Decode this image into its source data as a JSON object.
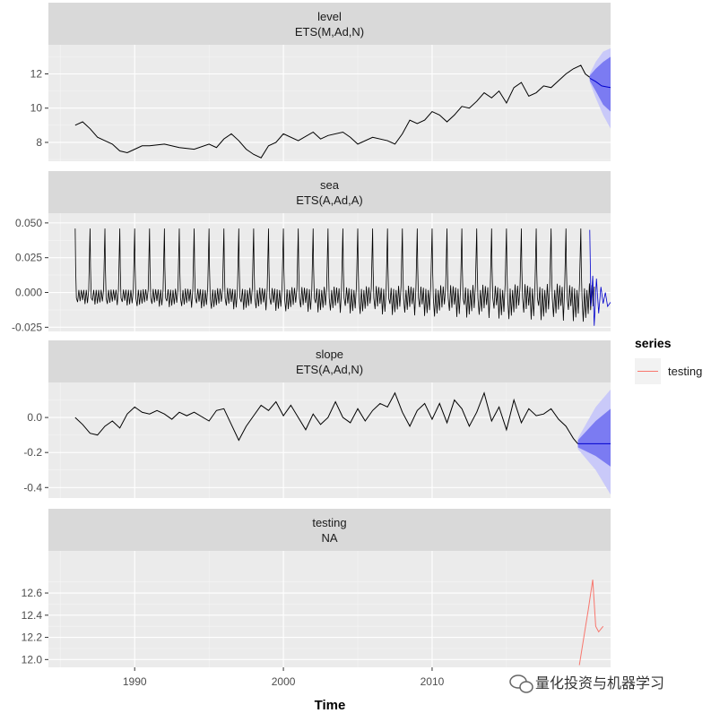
{
  "chart_data": {
    "type": "line",
    "xlabel": "Time",
    "x_ticks": [
      1990,
      2000,
      2010
    ],
    "xlim": [
      1984.2,
      2022.0
    ],
    "legend": {
      "title": "series",
      "entries": [
        {
          "name": "testing",
          "color": "#F8766D"
        }
      ],
      "position": "right"
    },
    "colors": {
      "history": "#000000",
      "forecast": "#0000CD",
      "ribbon_80": "#7B7BF2",
      "ribbon_95": "#C9C9F9",
      "testing": "#F8766D"
    },
    "panels": [
      {
        "strip": [
          "level",
          "ETS(M,Ad,N)"
        ],
        "ylim": [
          6.9,
          13.7
        ],
        "y_ticks": [
          8,
          10,
          12
        ],
        "y_tick_labels": [
          "8",
          "10",
          "12"
        ],
        "history": [
          [
            1986.0,
            9.0
          ],
          [
            1986.5,
            9.2
          ],
          [
            1987.0,
            8.8
          ],
          [
            1987.5,
            8.3
          ],
          [
            1988.0,
            8.1
          ],
          [
            1988.5,
            7.9
          ],
          [
            1989.0,
            7.5
          ],
          [
            1989.5,
            7.4
          ],
          [
            1990.0,
            7.6
          ],
          [
            1990.5,
            7.8
          ],
          [
            1991.0,
            7.8
          ],
          [
            1992.0,
            7.9
          ],
          [
            1993.0,
            7.7
          ],
          [
            1994.0,
            7.6
          ],
          [
            1995.0,
            7.9
          ],
          [
            1995.5,
            7.7
          ],
          [
            1996.0,
            8.2
          ],
          [
            1996.5,
            8.5
          ],
          [
            1997.0,
            8.1
          ],
          [
            1997.5,
            7.6
          ],
          [
            1998.0,
            7.3
          ],
          [
            1998.5,
            7.1
          ],
          [
            1999.0,
            7.8
          ],
          [
            1999.5,
            8.0
          ],
          [
            2000.0,
            8.5
          ],
          [
            2001.0,
            8.1
          ],
          [
            2002.0,
            8.6
          ],
          [
            2002.5,
            8.2
          ],
          [
            2003.0,
            8.4
          ],
          [
            2004.0,
            8.6
          ],
          [
            2004.5,
            8.3
          ],
          [
            2005.0,
            7.9
          ],
          [
            2006.0,
            8.3
          ],
          [
            2007.0,
            8.1
          ],
          [
            2007.5,
            7.9
          ],
          [
            2008.0,
            8.5
          ],
          [
            2008.5,
            9.3
          ],
          [
            2009.0,
            9.1
          ],
          [
            2009.5,
            9.3
          ],
          [
            2010.0,
            9.8
          ],
          [
            2010.5,
            9.6
          ],
          [
            2011.0,
            9.2
          ],
          [
            2011.5,
            9.6
          ],
          [
            2012.0,
            10.1
          ],
          [
            2012.5,
            10.0
          ],
          [
            2013.0,
            10.4
          ],
          [
            2013.5,
            10.9
          ],
          [
            2014.0,
            10.6
          ],
          [
            2014.5,
            11.0
          ],
          [
            2015.0,
            10.3
          ],
          [
            2015.5,
            11.2
          ],
          [
            2016.0,
            11.5
          ],
          [
            2016.5,
            10.7
          ],
          [
            2017.0,
            10.9
          ],
          [
            2017.5,
            11.3
          ],
          [
            2018.0,
            11.2
          ],
          [
            2018.5,
            11.6
          ],
          [
            2019.0,
            12.0
          ],
          [
            2019.5,
            12.3
          ],
          [
            2020.0,
            12.5
          ],
          [
            2020.3,
            12.0
          ],
          [
            2020.6,
            11.8
          ]
        ],
        "forecast": [
          [
            2020.6,
            11.75
          ],
          [
            2021.0,
            11.55
          ],
          [
            2021.4,
            11.3
          ],
          [
            2021.7,
            11.25
          ],
          [
            2022.0,
            11.2
          ]
        ],
        "ribbon_80": [
          [
            2020.6,
            11.6,
            11.9
          ],
          [
            2021.0,
            11.0,
            12.3
          ],
          [
            2021.5,
            10.2,
            12.7
          ],
          [
            2022.0,
            9.8,
            13.0
          ]
        ],
        "ribbon_95": [
          [
            2020.6,
            11.5,
            12.0
          ],
          [
            2021.0,
            10.6,
            12.7
          ],
          [
            2021.5,
            9.6,
            13.3
          ],
          [
            2022.0,
            8.8,
            13.5
          ]
        ]
      },
      {
        "strip": [
          "sea",
          "ETS(A,Ad,A)"
        ],
        "ylim": [
          -0.028,
          0.057
        ],
        "y_ticks": [
          -0.025,
          0.0,
          0.025,
          0.05
        ],
        "y_tick_labels": [
          "-0.025",
          "0.000",
          "0.025",
          "0.050"
        ],
        "seasonal": {
          "start": 1986.0,
          "end": 2020.6,
          "peak": 0.046,
          "trough_start": -0.009,
          "trough_end": -0.024
        },
        "forecast_seasonal": {
          "start": 2020.6,
          "end": 2022.0,
          "peak": 0.045,
          "trough": -0.024
        }
      },
      {
        "strip": [
          "slope",
          "ETS(A,Ad,N)"
        ],
        "ylim": [
          -0.46,
          0.2
        ],
        "y_ticks": [
          -0.4,
          -0.2,
          0.0
        ],
        "y_tick_labels": [
          "-0.4",
          "-0.2",
          "0.0"
        ],
        "history": [
          [
            1986.0,
            0.0
          ],
          [
            1986.5,
            -0.04
          ],
          [
            1987.0,
            -0.09
          ],
          [
            1987.5,
            -0.1
          ],
          [
            1988.0,
            -0.05
          ],
          [
            1988.5,
            -0.02
          ],
          [
            1989.0,
            -0.06
          ],
          [
            1989.5,
            0.02
          ],
          [
            1990.0,
            0.06
          ],
          [
            1990.5,
            0.03
          ],
          [
            1991.0,
            0.02
          ],
          [
            1991.5,
            0.04
          ],
          [
            1992.0,
            0.02
          ],
          [
            1992.5,
            -0.01
          ],
          [
            1993.0,
            0.03
          ],
          [
            1993.5,
            0.01
          ],
          [
            1994.0,
            0.03
          ],
          [
            1995.0,
            -0.02
          ],
          [
            1995.5,
            0.04
          ],
          [
            1996.0,
            0.05
          ],
          [
            1996.5,
            -0.04
          ],
          [
            1997.0,
            -0.13
          ],
          [
            1997.5,
            -0.05
          ],
          [
            1998.0,
            0.01
          ],
          [
            1998.5,
            0.07
          ],
          [
            1999.0,
            0.04
          ],
          [
            1999.5,
            0.09
          ],
          [
            2000.0,
            0.01
          ],
          [
            2000.5,
            0.07
          ],
          [
            2001.0,
            0.0
          ],
          [
            2001.5,
            -0.07
          ],
          [
            2002.0,
            0.02
          ],
          [
            2002.5,
            -0.04
          ],
          [
            2003.0,
            0.0
          ],
          [
            2003.5,
            0.09
          ],
          [
            2004.0,
            0.0
          ],
          [
            2004.5,
            -0.03
          ],
          [
            2005.0,
            0.05
          ],
          [
            2005.5,
            -0.02
          ],
          [
            2006.0,
            0.04
          ],
          [
            2006.5,
            0.08
          ],
          [
            2007.0,
            0.06
          ],
          [
            2007.5,
            0.14
          ],
          [
            2008.0,
            0.03
          ],
          [
            2008.5,
            -0.05
          ],
          [
            2009.0,
            0.04
          ],
          [
            2009.5,
            0.08
          ],
          [
            2010.0,
            -0.01
          ],
          [
            2010.5,
            0.08
          ],
          [
            2011.0,
            -0.03
          ],
          [
            2011.5,
            0.1
          ],
          [
            2012.0,
            0.05
          ],
          [
            2012.5,
            -0.05
          ],
          [
            2013.0,
            0.03
          ],
          [
            2013.5,
            0.14
          ],
          [
            2014.0,
            -0.02
          ],
          [
            2014.5,
            0.06
          ],
          [
            2015.0,
            -0.07
          ],
          [
            2015.5,
            0.1
          ],
          [
            2016.0,
            -0.03
          ],
          [
            2016.5,
            0.05
          ],
          [
            2017.0,
            0.01
          ],
          [
            2017.5,
            0.02
          ],
          [
            2018.0,
            0.05
          ],
          [
            2018.5,
            -0.01
          ],
          [
            2019.0,
            -0.05
          ],
          [
            2019.5,
            -0.12
          ],
          [
            2019.8,
            -0.15
          ]
        ],
        "forecast": [
          [
            2019.8,
            -0.15
          ],
          [
            2022.0,
            -0.15
          ]
        ],
        "ribbon_80": [
          [
            2019.8,
            -0.17,
            -0.13
          ],
          [
            2021.0,
            -0.22,
            -0.02
          ],
          [
            2022.0,
            -0.28,
            0.05
          ]
        ],
        "ribbon_95": [
          [
            2019.8,
            -0.18,
            -0.12
          ],
          [
            2021.0,
            -0.3,
            0.06
          ],
          [
            2022.0,
            -0.44,
            0.16
          ]
        ]
      },
      {
        "strip": [
          "testing",
          "NA"
        ],
        "ylim": [
          11.93,
          12.98
        ],
        "y_ticks": [
          12.0,
          12.2,
          12.4,
          12.6
        ],
        "y_tick_labels": [
          "12.0",
          "12.2",
          "12.4",
          "12.6"
        ],
        "testing": [
          [
            2019.9,
            11.95
          ],
          [
            2020.2,
            12.2
          ],
          [
            2020.5,
            12.45
          ],
          [
            2020.8,
            12.72
          ],
          [
            2021.0,
            12.3
          ],
          [
            2021.2,
            12.25
          ],
          [
            2021.5,
            12.3
          ]
        ]
      }
    ]
  },
  "watermark": {
    "text": "量化投资与机器学习",
    "icon": "wechat-icon"
  }
}
